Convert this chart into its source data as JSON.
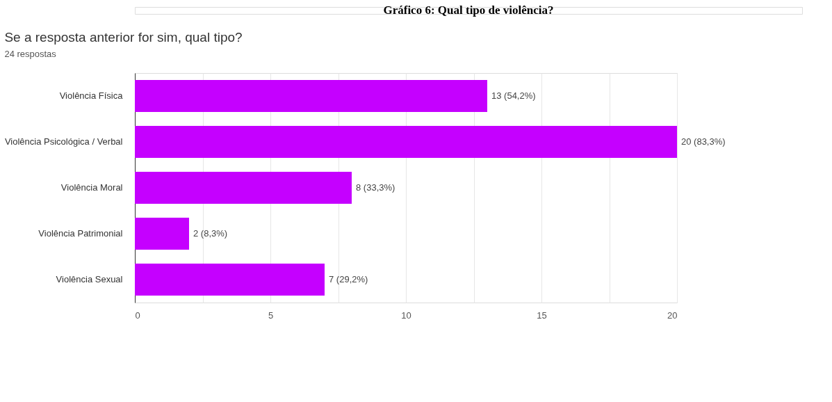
{
  "chart_data": {
    "type": "bar",
    "orientation": "horizontal",
    "title": "Se a resposta anterior for sim, qual tipo?",
    "subtitle": "24 respostas",
    "annotations": [
      "Gráfico 6: Qual tipo de violência?"
    ],
    "categories": [
      "Violência Física",
      "Violência Psicológica / Verbal",
      "Violência Moral",
      "Violência Patrimonial",
      "Violência Sexual"
    ],
    "values": [
      13,
      20,
      8,
      2,
      7
    ],
    "value_labels": [
      "13 (54,2%)",
      "20 (83,3%)",
      "8 (33,3%)",
      "2 (8,3%)",
      "7 (29,2%)"
    ],
    "color": "#c500ff",
    "xlim": [
      0,
      20
    ],
    "xticks": [
      0,
      {
        "value": 2.5,
        "label": null
      },
      5,
      {
        "value": 7.5,
        "label": null
      },
      10,
      {
        "value": 12.5,
        "label": null
      },
      15,
      {
        "value": 17.5,
        "label": null
      },
      20
    ],
    "grid": "x"
  }
}
